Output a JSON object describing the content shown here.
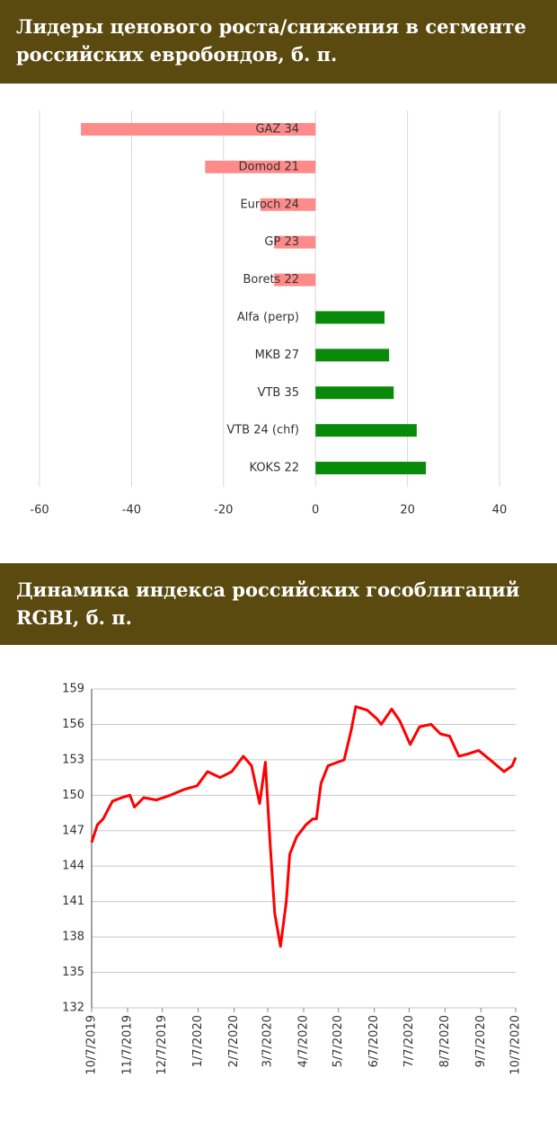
{
  "chart_data": [
    {
      "type": "hbar",
      "title": "Лидеры ценового роста/снижения в сегменте российских евробондов, б. п.",
      "categories": [
        "GAZ 34",
        "Domod 21",
        "Euroch 24",
        "GP 23",
        "Borets 22",
        "Alfa (perp)",
        "MKB 27",
        "VTB 35",
        "VTB 24 (chf)",
        "KOKS 22"
      ],
      "values": [
        -51,
        -24,
        -12,
        -9,
        -9,
        15,
        16,
        17,
        22,
        24
      ],
      "negative_color": "#ff8a8a",
      "positive_color": "#0a8a0a",
      "xlim": [
        -60,
        40
      ],
      "xticks": [
        -60,
        -40,
        -20,
        0,
        20,
        40
      ],
      "grid": true
    },
    {
      "type": "line",
      "title": "Динамика индекса российских гособлигаций RGBI, б. п.",
      "x": [
        "10/7/2019",
        "10/12/2019",
        "10/17/2019",
        "10/25/2019",
        "11/2/2019",
        "11/9/2019",
        "11/13/2019",
        "11/21/2019",
        "12/2/2019",
        "12/14/2019",
        "12/26/2019",
        "1/6/2020",
        "1/15/2020",
        "1/26/2020",
        "2/5/2020",
        "2/15/2020",
        "2/22/2020",
        "2/29/2020",
        "3/5/2020",
        "3/9/2020",
        "3/13/2020",
        "3/18/2020",
        "3/23/2020",
        "3/26/2020",
        "4/1/2020",
        "4/9/2020",
        "4/15/2020",
        "4/18/2020",
        "4/22/2020",
        "4/28/2020",
        "5/12/2020",
        "5/18/2020",
        "5/22/2020",
        "6/1/2020",
        "6/9/2020",
        "6/13/2020",
        "6/22/2020",
        "6/29/2020",
        "7/8/2020",
        "7/16/2020",
        "7/26/2020",
        "8/3/2020",
        "8/11/2020",
        "8/19/2020",
        "8/27/2020",
        "9/5/2020",
        "9/15/2020",
        "9/27/2020",
        "10/4/2020",
        "10/7/2020"
      ],
      "series": [
        {
          "name": "RGBI",
          "color": "#ff0000",
          "values": [
            146,
            147.5,
            148,
            149.5,
            149.8,
            150,
            149,
            149.8,
            149.6,
            150,
            150.5,
            150.8,
            152,
            151.5,
            152,
            153.3,
            152.5,
            149.3,
            152.8,
            146,
            140,
            137.2,
            141,
            145,
            146.5,
            147.5,
            148,
            148,
            151,
            152.5,
            153,
            155.5,
            157.5,
            157.2,
            156.5,
            156,
            157.3,
            156.3,
            154.3,
            155.8,
            156,
            155.2,
            155,
            153.3,
            153.5,
            153.8,
            153,
            152,
            152.5,
            153.2
          ]
        }
      ],
      "xlim": [
        "10/7/2019",
        "10/7/2020"
      ],
      "xticks": [
        "10/7/2019",
        "11/7/2019",
        "12/7/2019",
        "1/7/2020",
        "2/7/2020",
        "3/7/2020",
        "4/7/2020",
        "5/7/2020",
        "6/7/2020",
        "7/7/2020",
        "8/7/2020",
        "9/7/2020",
        "10/7/2020"
      ],
      "ylim": [
        132,
        159
      ],
      "yticks": [
        132,
        135,
        138,
        141,
        144,
        147,
        150,
        153,
        156,
        159
      ],
      "grid": true
    }
  ]
}
